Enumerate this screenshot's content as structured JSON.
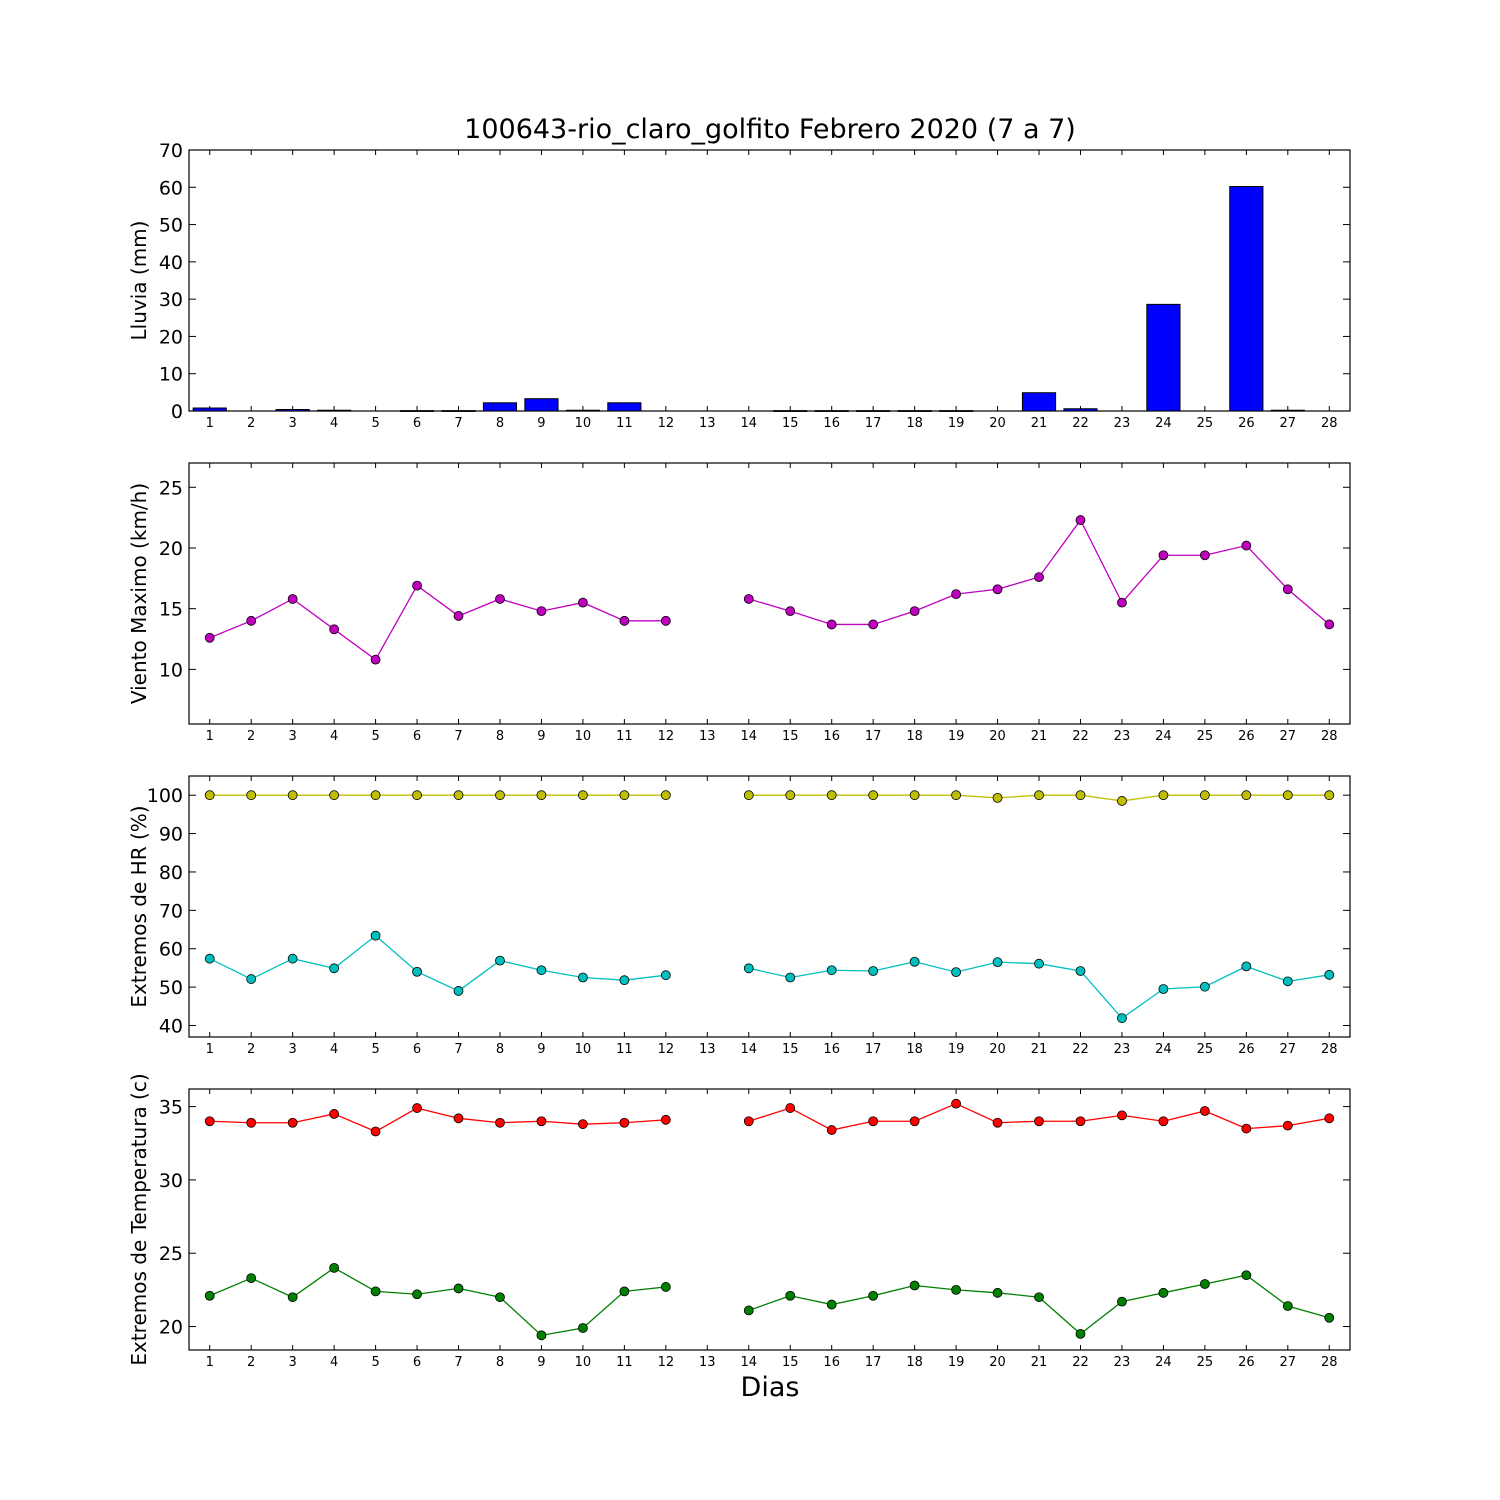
{
  "figure": {
    "title": "100643-rio_claro_golfito Febrero 2020  (7 a 7)",
    "xlabel": "Dias"
  },
  "chart_data": [
    {
      "type": "bar",
      "ylabel": "Lluvia (mm)",
      "ylim": [
        0,
        70
      ],
      "yticks": [
        0,
        10,
        20,
        30,
        40,
        50,
        60,
        70
      ],
      "x_ticks": [
        1,
        2,
        3,
        4,
        5,
        6,
        7,
        8,
        9,
        10,
        11,
        12,
        13,
        14,
        15,
        16,
        17,
        18,
        19,
        20,
        21,
        22,
        23,
        24,
        25,
        26,
        27,
        28
      ],
      "xlim": [
        0.5,
        28.5
      ],
      "grid": false,
      "series": [
        {
          "color": "#0000ff",
          "x": [
            1,
            2,
            3,
            4,
            5,
            6,
            7,
            8,
            9,
            10,
            11,
            12,
            13,
            14,
            15,
            16,
            17,
            18,
            19,
            20,
            21,
            22,
            23,
            24,
            25,
            26,
            27,
            28
          ],
          "values": [
            0.8,
            0,
            0.4,
            0.2,
            0,
            0.1,
            0.1,
            2.2,
            3.3,
            0.2,
            2.2,
            0,
            0,
            0,
            0.1,
            0.1,
            0.1,
            0.1,
            0.1,
            0,
            4.9,
            0.6,
            0,
            28.6,
            0,
            60.2,
            0.2,
            0
          ]
        }
      ]
    },
    {
      "type": "line",
      "ylabel": "Viento Maximo (km/h)",
      "ylim": [
        5.5,
        27
      ],
      "yticks": [
        10,
        15,
        20,
        25
      ],
      "x_ticks": [
        1,
        2,
        3,
        4,
        5,
        6,
        7,
        8,
        9,
        10,
        11,
        12,
        13,
        14,
        15,
        16,
        17,
        18,
        19,
        20,
        21,
        22,
        23,
        24,
        25,
        26,
        27,
        28
      ],
      "xlim": [
        0.5,
        28.5
      ],
      "grid": false,
      "series": [
        {
          "color": "#bf00bf",
          "x": [
            1,
            2,
            3,
            4,
            5,
            6,
            7,
            8,
            9,
            10,
            11,
            12,
            13,
            14,
            15,
            16,
            17,
            18,
            19,
            20,
            21,
            22,
            23,
            24,
            25,
            26,
            27,
            28
          ],
          "values": [
            12.6,
            14.0,
            15.8,
            13.3,
            10.8,
            16.9,
            14.4,
            15.8,
            14.8,
            15.5,
            14.0,
            14.0,
            null,
            15.8,
            14.8,
            13.7,
            13.7,
            14.8,
            16.2,
            16.6,
            17.6,
            22.3,
            15.5,
            19.4,
            19.4,
            20.2,
            16.6,
            13.7
          ]
        }
      ]
    },
    {
      "type": "line",
      "ylabel": "Extremos de HR (%)",
      "ylim": [
        37,
        105
      ],
      "yticks": [
        40,
        50,
        60,
        70,
        80,
        90,
        100
      ],
      "x_ticks": [
        1,
        2,
        3,
        4,
        5,
        6,
        7,
        8,
        9,
        10,
        11,
        12,
        13,
        14,
        15,
        16,
        17,
        18,
        19,
        20,
        21,
        22,
        23,
        24,
        25,
        26,
        27,
        28
      ],
      "xlim": [
        0.5,
        28.5
      ],
      "grid": false,
      "series": [
        {
          "color": "#bfbf00",
          "x": [
            1,
            2,
            3,
            4,
            5,
            6,
            7,
            8,
            9,
            10,
            11,
            12,
            13,
            14,
            15,
            16,
            17,
            18,
            19,
            20,
            21,
            22,
            23,
            24,
            25,
            26,
            27,
            28
          ],
          "values": [
            100,
            100,
            100,
            100,
            100,
            100,
            100,
            100,
            100,
            100,
            100,
            100,
            null,
            100,
            100,
            100,
            100,
            100,
            100,
            99.3,
            100,
            100,
            98.5,
            100,
            100,
            100,
            100,
            100
          ]
        },
        {
          "color": "#00bfbf",
          "x": [
            1,
            2,
            3,
            4,
            5,
            6,
            7,
            8,
            9,
            10,
            11,
            12,
            13,
            14,
            15,
            16,
            17,
            18,
            19,
            20,
            21,
            22,
            23,
            24,
            25,
            26,
            27,
            28
          ],
          "values": [
            57.4,
            52.1,
            57.4,
            54.9,
            63.4,
            54.0,
            49.0,
            56.9,
            54.4,
            52.5,
            51.8,
            53.1,
            null,
            54.9,
            52.5,
            54.4,
            54.2,
            56.6,
            53.9,
            56.5,
            56.1,
            54.2,
            41.9,
            49.5,
            50.1,
            55.4,
            51.5,
            53.2
          ]
        }
      ]
    },
    {
      "type": "line",
      "ylabel": "Extremos de Temperatura (c)",
      "ylim": [
        18.4,
        36.2
      ],
      "yticks": [
        20,
        25,
        30,
        35
      ],
      "x_ticks": [
        1,
        2,
        3,
        4,
        5,
        6,
        7,
        8,
        9,
        10,
        11,
        12,
        13,
        14,
        15,
        16,
        17,
        18,
        19,
        20,
        21,
        22,
        23,
        24,
        25,
        26,
        27,
        28
      ],
      "xlim": [
        0.5,
        28.5
      ],
      "grid": false,
      "series": [
        {
          "color": "#ff0000",
          "x": [
            1,
            2,
            3,
            4,
            5,
            6,
            7,
            8,
            9,
            10,
            11,
            12,
            13,
            14,
            15,
            16,
            17,
            18,
            19,
            20,
            21,
            22,
            23,
            24,
            25,
            26,
            27,
            28
          ],
          "values": [
            34.0,
            33.9,
            33.9,
            34.5,
            33.3,
            34.9,
            34.2,
            33.9,
            34.0,
            33.8,
            33.9,
            34.1,
            null,
            34.0,
            34.9,
            33.4,
            34.0,
            34.0,
            35.2,
            33.9,
            34.0,
            34.0,
            34.4,
            34.0,
            34.7,
            33.5,
            33.7,
            34.2
          ]
        },
        {
          "color": "#008000",
          "x": [
            1,
            2,
            3,
            4,
            5,
            6,
            7,
            8,
            9,
            10,
            11,
            12,
            13,
            14,
            15,
            16,
            17,
            18,
            19,
            20,
            21,
            22,
            23,
            24,
            25,
            26,
            27,
            28
          ],
          "values": [
            22.1,
            23.3,
            22.0,
            24.0,
            22.4,
            22.2,
            22.6,
            22.0,
            19.4,
            19.9,
            22.4,
            22.7,
            null,
            21.1,
            22.1,
            21.5,
            22.1,
            22.8,
            22.5,
            22.3,
            22.0,
            19.5,
            21.7,
            22.3,
            22.9,
            23.5,
            21.4,
            20.6
          ]
        }
      ]
    }
  ]
}
